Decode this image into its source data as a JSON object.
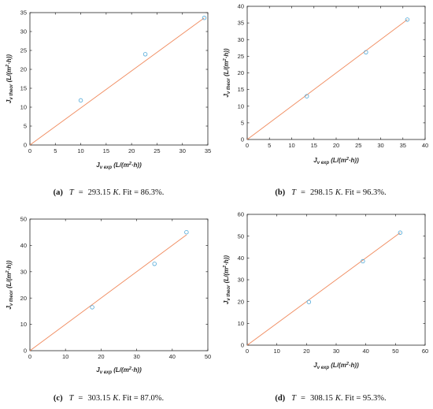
{
  "chart_data": [
    {
      "type": "scatter",
      "caption": {
        "tag": "(a)",
        "var": "T",
        "eq": "=",
        "value": "293.15",
        "unit": "K",
        "fit": ". Fit = 86.3%."
      },
      "xlabel": {
        "main": "J",
        "sub": "v exp",
        "pre": "(L/(m",
        "sup": "2",
        "post": "·h))"
      },
      "ylabel": {
        "main": "J",
        "sub": "v theor",
        "pre": "(L/(m",
        "sup": "2",
        "post": "·h))"
      },
      "xlim": [
        0,
        35
      ],
      "ylim": [
        0,
        35
      ],
      "xticks": [
        0,
        5,
        10,
        15,
        20,
        25,
        30,
        35
      ],
      "yticks": [
        0,
        5,
        10,
        15,
        20,
        25,
        30,
        35
      ],
      "x": [
        10.0,
        22.7,
        34.3
      ],
      "y": [
        11.8,
        24.0,
        33.6
      ],
      "fit_line": [
        [
          0,
          0
        ],
        [
          34.3,
          33.6
        ]
      ]
    },
    {
      "type": "scatter",
      "caption": {
        "tag": "(b)",
        "var": "T",
        "eq": "=",
        "value": "298.15",
        "unit": "K",
        "fit": ". Fit = 96.3%."
      },
      "xlabel": {
        "main": "J",
        "sub": "v exp",
        "pre": "(L/(m",
        "sup": "2",
        "post": "·h))"
      },
      "ylabel": {
        "main": "J",
        "sub": "v theor",
        "pre": "(L/(m",
        "sup": "2",
        "post": "·h))"
      },
      "xlim": [
        0,
        40
      ],
      "ylim": [
        0,
        40
      ],
      "xticks": [
        0,
        5,
        10,
        15,
        20,
        25,
        30,
        35,
        40
      ],
      "yticks": [
        0,
        5,
        10,
        15,
        20,
        25,
        30,
        35,
        40
      ],
      "x": [
        13.4,
        26.7,
        36.0
      ],
      "y": [
        13.0,
        26.2,
        36.0
      ],
      "fit_line": [
        [
          0,
          0
        ],
        [
          36.0,
          36.0
        ]
      ]
    },
    {
      "type": "scatter",
      "caption": {
        "tag": "(c)",
        "var": "T",
        "eq": "=",
        "value": "303.15",
        "unit": "K",
        "fit": ". Fit = 87.0%."
      },
      "xlabel": {
        "main": "J",
        "sub": "v exp",
        "pre": "(L/(m",
        "sup": "2",
        "post": "·h))"
      },
      "ylabel": {
        "main": "J",
        "sub": "v theor",
        "pre": "(L/(m",
        "sup": "2",
        "post": "·h))"
      },
      "xlim": [
        0,
        50
      ],
      "ylim": [
        0,
        50
      ],
      "xticks": [
        0,
        10,
        20,
        30,
        40,
        50
      ],
      "yticks": [
        0,
        10,
        20,
        30,
        40,
        50
      ],
      "x": [
        17.5,
        35.0,
        44.0
      ],
      "y": [
        16.5,
        33.0,
        45.0
      ],
      "fit_line": [
        [
          0,
          0
        ],
        [
          44.0,
          44.0
        ]
      ]
    },
    {
      "type": "scatter",
      "caption": {
        "tag": "(d)",
        "var": "T",
        "eq": "=",
        "value": "308.15",
        "unit": "K",
        "fit": ". Fit = 95.3%."
      },
      "xlabel": {
        "main": "J",
        "sub": "v exp",
        "pre": "(L/(m",
        "sup": "2",
        "post": "·h))"
      },
      "ylabel": {
        "main": "J",
        "sub": "v theor",
        "pre": "(L/(m",
        "sup": "2",
        "post": "·h))"
      },
      "xlim": [
        0,
        60
      ],
      "ylim": [
        0,
        60
      ],
      "xticks": [
        0,
        10,
        20,
        30,
        40,
        50,
        60
      ],
      "yticks": [
        0,
        10,
        20,
        30,
        40,
        50,
        60
      ],
      "x": [
        20.8,
        39.0,
        51.6
      ],
      "y": [
        19.8,
        38.5,
        51.6
      ],
      "fit_line": [
        [
          0,
          0
        ],
        [
          51.6,
          51.6
        ]
      ]
    }
  ],
  "colors": {
    "marker": "#4fa8d8",
    "fit": "#f08a5d",
    "axis": "#262626",
    "grid": "#ffffff"
  }
}
